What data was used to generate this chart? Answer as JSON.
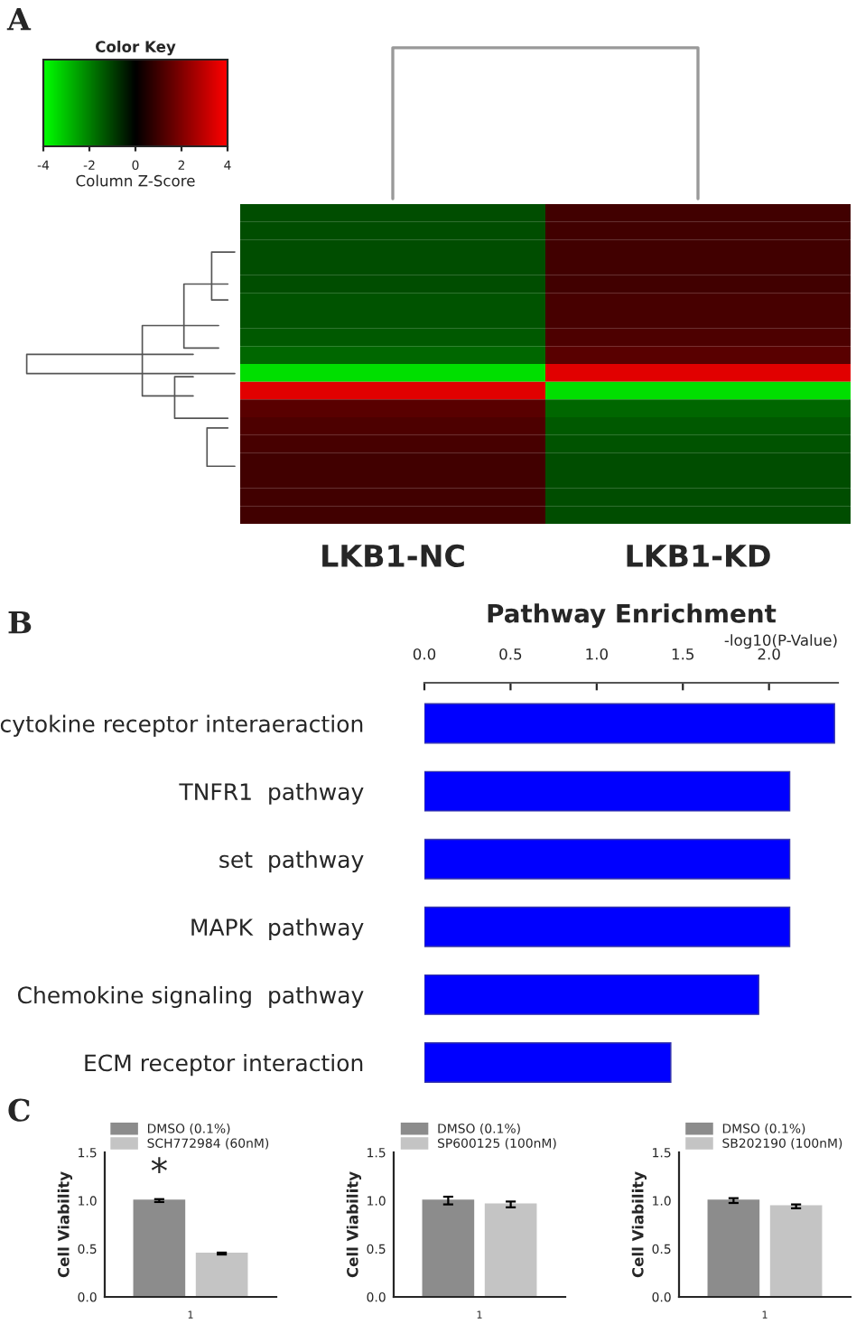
{
  "chart_data": [
    {
      "type": "heatmap",
      "legend_title": "Color Key",
      "clabel": "Column Z-Score",
      "annotations": [
        "A"
      ],
      "categories": [
        "LKB1-NC",
        "LKB1-KD"
      ],
      "y_categories": [
        null,
        null,
        null,
        null,
        null,
        null,
        null,
        null,
        null,
        null,
        null,
        null,
        null,
        null,
        null,
        null,
        null,
        null
      ],
      "cells": [
        [
          -1.2,
          1.0
        ],
        [
          -1.2,
          1.0
        ],
        [
          -1.2,
          1.0
        ],
        [
          -1.2,
          1.0
        ],
        [
          -1.2,
          1.0
        ],
        [
          -1.3,
          1.1
        ],
        [
          -1.3,
          1.1
        ],
        [
          -1.4,
          1.2
        ],
        [
          -1.6,
          1.4
        ],
        [
          -3.5,
          3.5
        ],
        [
          3.5,
          -3.5
        ],
        [
          1.4,
          -1.6
        ],
        [
          1.2,
          -1.4
        ],
        [
          1.1,
          -1.3
        ],
        [
          1.0,
          -1.2
        ],
        [
          1.0,
          -1.2
        ],
        [
          1.0,
          -1.2
        ],
        [
          1.0,
          -1.2
        ]
      ],
      "clim": [
        -4,
        4
      ],
      "cticks": [
        -4,
        -2,
        0,
        2,
        4
      ]
    },
    {
      "type": "bar",
      "orientation": "horizontal",
      "title": "Pathway Enrichment",
      "xlabel": "-log10(P-Value)",
      "annotations": [
        "B"
      ],
      "categories": [
        "cytokine receptor interaeraction",
        "TNFR1  pathway",
        "set  pathway",
        "MAPK  pathway",
        "Chemokine signaling  pathway",
        "ECM receptor interaction"
      ],
      "values": [
        2.38,
        2.12,
        2.12,
        2.12,
        1.94,
        1.43
      ],
      "color": "#0000ff",
      "xlim": [
        0,
        2.4
      ],
      "xticks": [
        {
          "value": 0,
          "label": "0.0"
        },
        {
          "value": 0.5,
          "label": "0.5"
        },
        {
          "value": 1,
          "label": "1.0"
        },
        {
          "value": 1.5,
          "label": "1.5"
        },
        {
          "value": 2,
          "label": "2.0"
        }
      ],
      "tick_labels": "x"
    },
    {
      "type": "bar",
      "ylabel": "Cell Viability",
      "annotations": [
        "C",
        "*"
      ],
      "categories": [
        "1"
      ],
      "series": [
        {
          "name": "DMSO (0.1%)",
          "color": "#8c8c8c",
          "values": [
            1.0
          ],
          "errors": [
            0.015
          ]
        },
        {
          "name": "SCH772984 (60nM)",
          "color": "#c4c4c4",
          "values": [
            0.45
          ],
          "errors": [
            0.01
          ]
        }
      ],
      "ylim": [
        0,
        1.5
      ],
      "yticks": [
        {
          "value": 0,
          "label": "0.0"
        },
        {
          "value": 0.5,
          "label": "0.5"
        },
        {
          "value": 1,
          "label": "1.0"
        },
        {
          "value": 1.5,
          "label": "1.5"
        }
      ],
      "legend": "top"
    },
    {
      "type": "bar",
      "ylabel": "Cell Viability",
      "categories": [
        "1"
      ],
      "series": [
        {
          "name": "DMSO (0.1%)",
          "color": "#8c8c8c",
          "values": [
            1.0
          ],
          "errors": [
            0.04
          ]
        },
        {
          "name": "SP600125 (100nM)",
          "color": "#c4c4c4",
          "values": [
            0.96
          ],
          "errors": [
            0.03
          ]
        }
      ],
      "ylim": [
        0,
        1.5
      ],
      "yticks": [
        {
          "value": 0,
          "label": "0.0"
        },
        {
          "value": 0.5,
          "label": "0.5"
        },
        {
          "value": 1,
          "label": "1.0"
        },
        {
          "value": 1.5,
          "label": "1.5"
        }
      ],
      "legend": "top"
    },
    {
      "type": "bar",
      "ylabel": "Cell Viability",
      "categories": [
        "1"
      ],
      "series": [
        {
          "name": "DMSO (0.1%)",
          "color": "#8c8c8c",
          "values": [
            1.0
          ],
          "errors": [
            0.025
          ]
        },
        {
          "name": "SB202190 (100nM)",
          "color": "#c4c4c4",
          "values": [
            0.94
          ],
          "errors": [
            0.02
          ]
        }
      ],
      "ylim": [
        0,
        1.5
      ],
      "yticks": [
        {
          "value": 0,
          "label": "0.0"
        },
        {
          "value": 0.5,
          "label": "0.5"
        },
        {
          "value": 1,
          "label": "1.0"
        },
        {
          "value": 1.5,
          "label": "1.5"
        }
      ],
      "legend": "top"
    }
  ]
}
